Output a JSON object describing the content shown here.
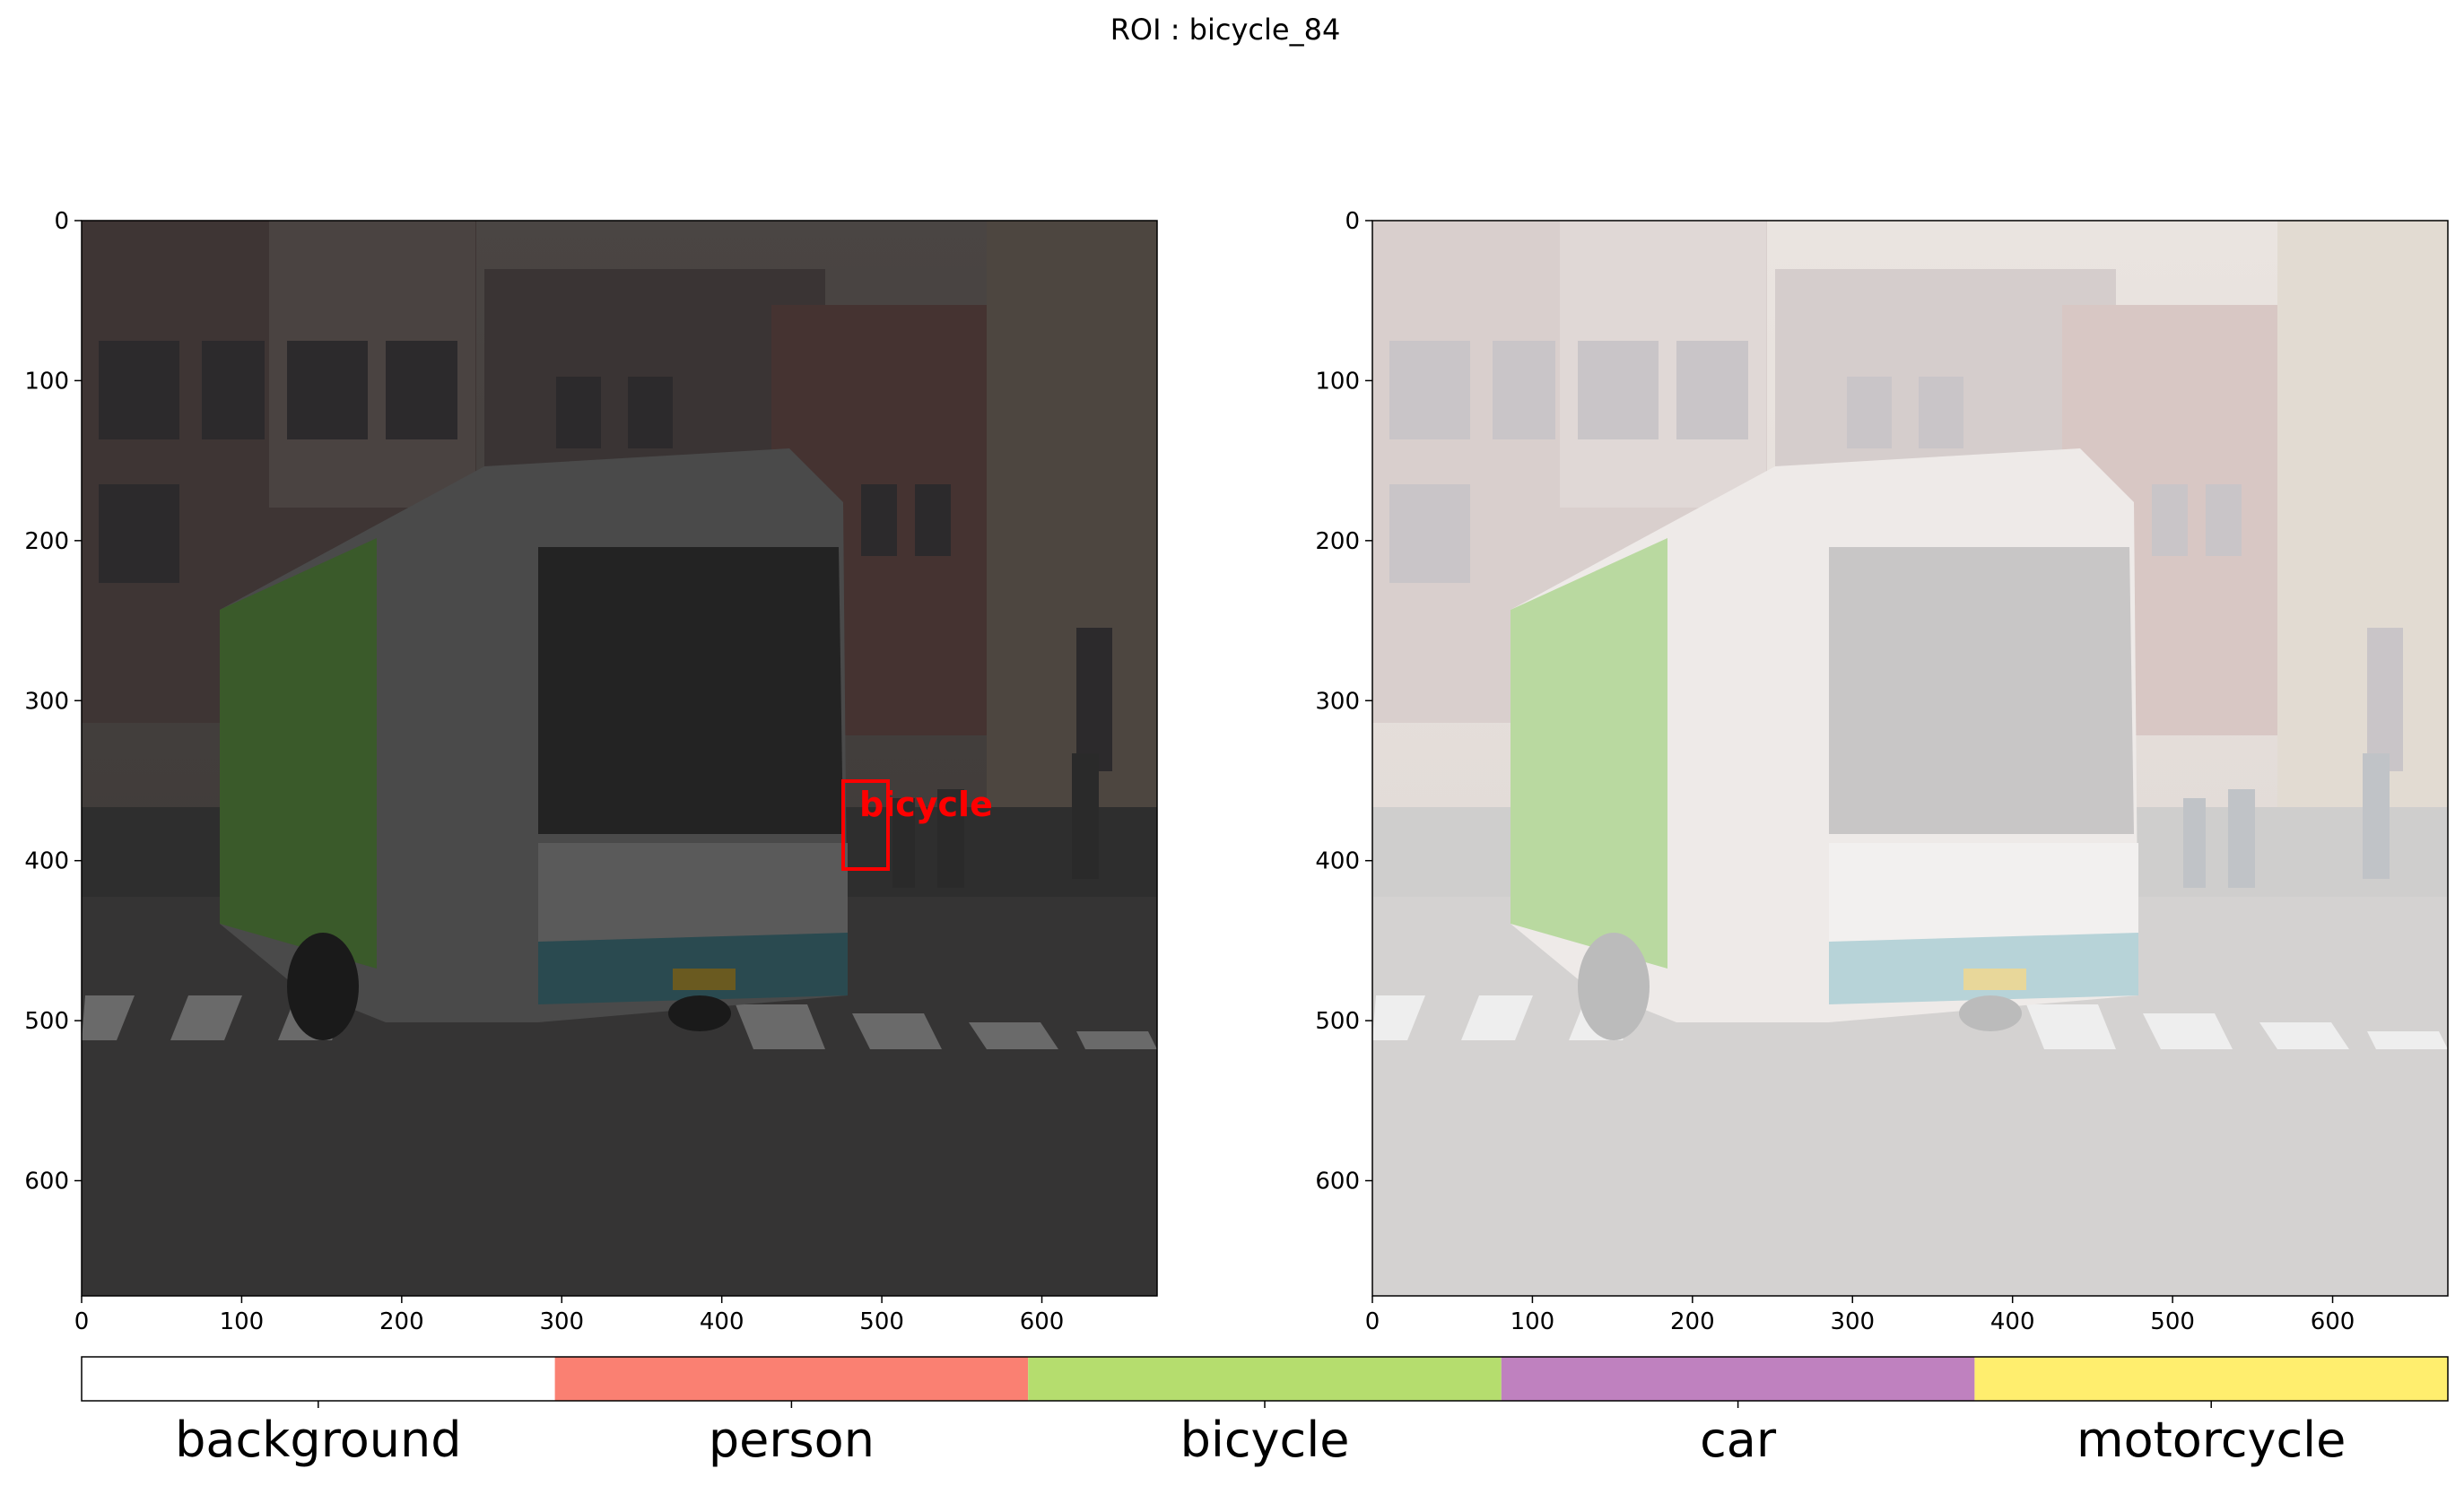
{
  "figure": {
    "title": "ROI : bicycle_84"
  },
  "left_panel": {
    "roi_box": {
      "label": "bicycle",
      "color": "#ff0000",
      "x": 477,
      "y": 351,
      "width": 28,
      "height": 55
    },
    "xlim": [
      0,
      672
    ],
    "ylim": [
      672,
      0
    ],
    "xticks": [
      "0",
      "100",
      "200",
      "300",
      "400",
      "500",
      "600"
    ],
    "yticks": [
      "0",
      "100",
      "200",
      "300",
      "400",
      "500",
      "600"
    ]
  },
  "right_panel": {
    "xlim": [
      0,
      672
    ],
    "ylim": [
      672,
      0
    ],
    "xticks": [
      "0",
      "100",
      "200",
      "300",
      "400",
      "500",
      "600"
    ],
    "yticks": [
      "0",
      "100",
      "200",
      "300",
      "400",
      "500",
      "600"
    ]
  },
  "colorbar": {
    "classes": [
      {
        "label": "background",
        "color": "#ffffff"
      },
      {
        "label": "person",
        "color": "#fa8072"
      },
      {
        "label": "bicycle",
        "color": "#b5dd6e"
      },
      {
        "label": "car",
        "color": "#bf81bf"
      },
      {
        "label": "motorcycle",
        "color": "#ffee6e"
      }
    ]
  }
}
